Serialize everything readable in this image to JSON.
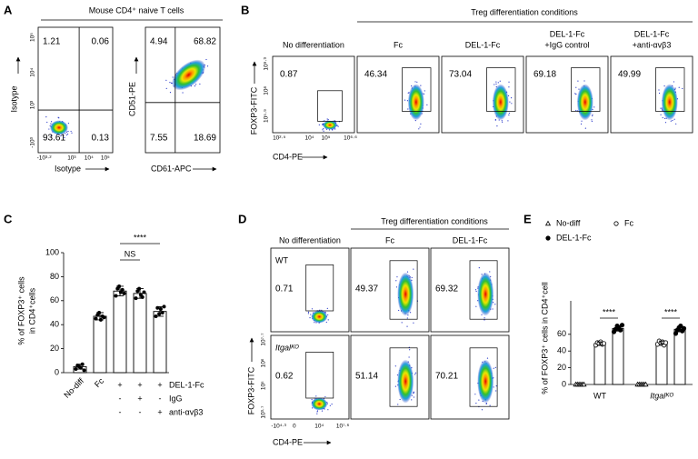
{
  "panel_A": {
    "label": "A",
    "title": "Mouse CD4⁺ naive T cells",
    "plots": [
      {
        "y_label": "Isotype",
        "x_label": "Isotype",
        "y_ticks": [
          "10⁵",
          "10⁴",
          "10³",
          "-10³"
        ],
        "x_ticks": [
          "-10³·²",
          "10³",
          "10⁴",
          "10⁵"
        ],
        "quadrants": [
          "1.21",
          "0.06",
          "93.61",
          "0.13"
        ]
      },
      {
        "y_label": "CD51-PE",
        "x_label": "CD61-APC",
        "quadrants": [
          "4.94",
          "68.82",
          "7.55",
          "18.69"
        ]
      }
    ]
  },
  "panel_B": {
    "label": "B",
    "group_title": "Treg differentiation conditions",
    "y_label": "FOXP3-FITC",
    "x_label": "CD4-PE",
    "y_ticks": [
      "10⁹·³",
      "10⁸",
      "10⁵·⁹"
    ],
    "x_ticks": [
      "10²·⁵",
      "10⁴",
      "10⁵",
      "10⁶·⁶"
    ],
    "conditions": [
      {
        "header": [
          "No differentiation"
        ],
        "gate": "0.87"
      },
      {
        "header": [
          "Fc"
        ],
        "gate": "46.34"
      },
      {
        "header": [
          "DEL-1-Fc"
        ],
        "gate": "73.04"
      },
      {
        "header": [
          "DEL-1-Fc",
          "+IgG control"
        ],
        "gate": "69.18"
      },
      {
        "header": [
          "DEL-1-Fc",
          "+anti-αvβ3"
        ],
        "gate": "49.99"
      }
    ]
  },
  "panel_D": {
    "label": "D",
    "group_title": "Treg differentiation conditions",
    "headers": [
      "No differentiation",
      "Fc",
      "DEL-1-Fc"
    ],
    "rows": [
      {
        "genotype": "WT",
        "gates": [
          "0.71",
          "49.37",
          "69.32"
        ]
      },
      {
        "genotype": "Itgalᴷᴼ",
        "gates": [
          "0.62",
          "51.14",
          "70.21"
        ]
      }
    ],
    "y_label": "FOXP3-FITC",
    "x_label": "CD4-PE",
    "y_ticks": [
      "10⁷·⁷",
      "10⁶",
      "10⁵",
      "10³·⁷"
    ],
    "x_ticks": [
      "-10⁴·³",
      "0",
      "10⁴",
      "10⁷·⁶"
    ]
  },
  "chart_data": [
    {
      "type": "bar",
      "panel_label": "C",
      "y_label": [
        "% of FOXP3⁺ cells",
        "in CD4⁺cells"
      ],
      "categories": [
        "No-diff",
        "Fc",
        null,
        null,
        null
      ],
      "values": [
        5,
        47,
        68,
        66,
        51
      ],
      "errors": [
        2,
        3,
        4,
        4,
        4
      ],
      "points": [
        [
          3,
          6,
          5,
          4,
          7,
          2
        ],
        [
          45,
          48,
          50,
          44,
          47,
          46
        ],
        [
          64,
          70,
          72,
          67,
          69,
          66
        ],
        [
          62,
          68,
          70,
          65,
          63,
          67
        ],
        [
          47,
          54,
          49,
          53,
          50,
          55
        ]
      ],
      "color": "#ffffff",
      "ylim": [
        0,
        100
      ],
      "yticks": [
        0,
        20,
        40,
        60,
        80,
        100
      ],
      "treatments": [
        {
          "name": "DEL-1-Fc",
          "marks": [
            null,
            null,
            "+",
            "+",
            "+"
          ]
        },
        {
          "name": "IgG",
          "marks": [
            null,
            null,
            "-",
            "+",
            "-"
          ]
        },
        {
          "name": "anti-αvβ3",
          "marks": [
            null,
            null,
            "-",
            "-",
            "+"
          ]
        }
      ],
      "annotations": [
        "****",
        "NS"
      ]
    },
    {
      "type": "grouped-bar",
      "panel_label": "E",
      "y_label": [
        "% of FOXP3⁺ cells in CD4⁺cell"
      ],
      "categories": [
        "WT",
        "Itgalᴷᴼ"
      ],
      "series": [
        {
          "name": "No-diff",
          "marker": "triangle-open",
          "color": "#000000",
          "values": [
            0,
            0
          ],
          "errors": [
            0,
            0
          ],
          "points": [
            [
              0,
              0,
              0,
              0,
              0,
              0
            ],
            [
              0,
              0,
              0,
              0,
              0,
              0
            ]
          ]
        },
        {
          "name": "Fc",
          "marker": "circle-open",
          "color": "#000000",
          "values": [
            49,
            50
          ],
          "errors": [
            2,
            2
          ],
          "points": [
            [
              47,
              50,
              49,
              51,
              48,
              49
            ],
            [
              48,
              52,
              49,
              51,
              47,
              50
            ]
          ]
        },
        {
          "name": "DEL-1-Fc",
          "marker": "circle-filled",
          "color": "#000000",
          "values": [
            67,
            66
          ],
          "errors": [
            3,
            3
          ],
          "points": [
            [
              63,
              66,
              70,
              68,
              65,
              71
            ],
            [
              61,
              65,
              68,
              70,
              64,
              67
            ]
          ]
        }
      ],
      "ylim": [
        0,
        100
      ],
      "yticks": [
        0,
        20,
        40,
        60
      ],
      "annotations": [
        "****",
        "****"
      ]
    }
  ]
}
